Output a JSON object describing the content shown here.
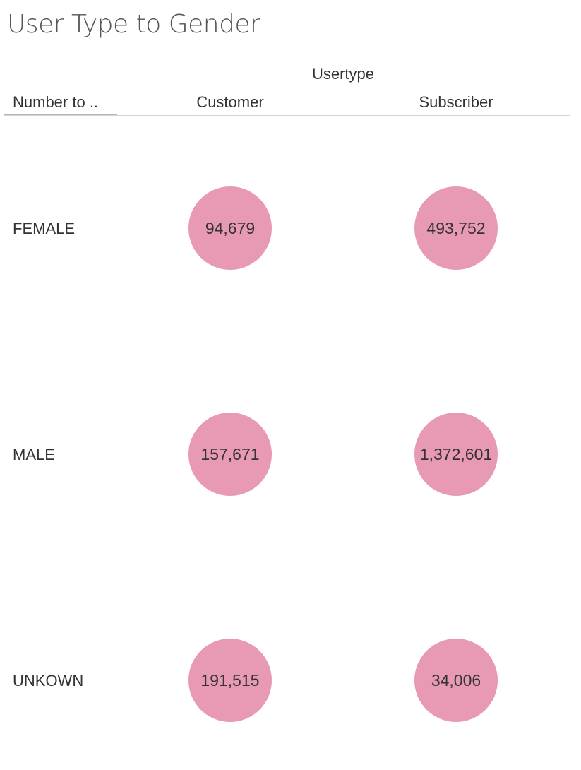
{
  "title": "User Type to Gender",
  "columns_group_label": "Usertype",
  "row_header_label": "Number to ..",
  "chart_data": {
    "type": "table",
    "title": "User Type to Gender",
    "column_dimension": "Usertype",
    "columns": [
      "Customer",
      "Subscriber"
    ],
    "rows": [
      "FEMALE",
      "MALE",
      "UNKOWN"
    ],
    "values": [
      [
        "94,679",
        "493,752"
      ],
      [
        "157,671",
        "1,372,601"
      ],
      [
        "191,515",
        "34,006"
      ]
    ],
    "mark": "circle",
    "mark_color": "#e899b3"
  }
}
